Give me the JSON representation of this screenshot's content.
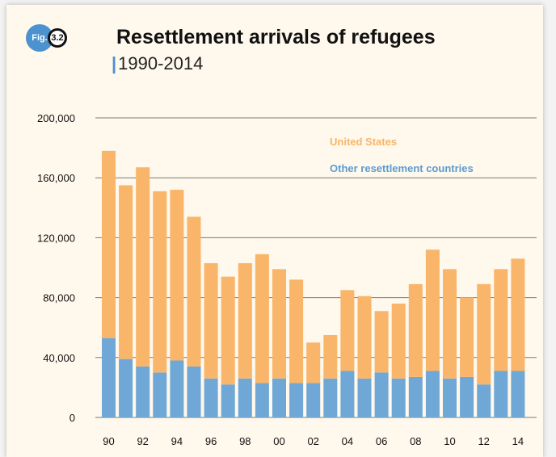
{
  "header": {
    "fig_label": "Fig.",
    "fig_number": "3.2",
    "title": "Resettlement arrivals of refugees",
    "subtitle": "1990-2014"
  },
  "colors": {
    "us": "#f9b56a",
    "other": "#6fa8d6",
    "badge": "#4b92cf",
    "grid": "#7a7a7a"
  },
  "chart_data": {
    "type": "bar",
    "stacked": true,
    "categories": [
      "1990",
      "1991",
      "1992",
      "1993",
      "1994",
      "1995",
      "1996",
      "1997",
      "1998",
      "1999",
      "2000",
      "2001",
      "2002",
      "2003",
      "2004",
      "2005",
      "2006",
      "2007",
      "2008",
      "2009",
      "2010",
      "2011",
      "2012",
      "2013",
      "2014"
    ],
    "xtick_labels": [
      "90",
      "92",
      "94",
      "96",
      "98",
      "00",
      "02",
      "04",
      "06",
      "08",
      "10",
      "12",
      "14"
    ],
    "yticks": [
      "0",
      "40,000",
      "80,000",
      "120,000",
      "160,000",
      "200,000"
    ],
    "ylim": [
      0,
      200000
    ],
    "grid": true,
    "legend_position": "top-right",
    "series": [
      {
        "name": "Other resettlement countries",
        "values": [
          53000,
          39000,
          34000,
          30000,
          38000,
          34000,
          26000,
          22000,
          26000,
          23000,
          26000,
          23000,
          23000,
          26000,
          31000,
          26000,
          30000,
          26000,
          27000,
          31000,
          26000,
          27000,
          22000,
          31000,
          31000
        ]
      },
      {
        "name": "United States",
        "values": [
          125000,
          116000,
          133000,
          121000,
          114000,
          100000,
          77000,
          72000,
          77000,
          86000,
          73000,
          69000,
          27000,
          29000,
          54000,
          55000,
          41000,
          50000,
          62000,
          81000,
          73000,
          53000,
          67000,
          68000,
          75000
        ]
      }
    ]
  }
}
